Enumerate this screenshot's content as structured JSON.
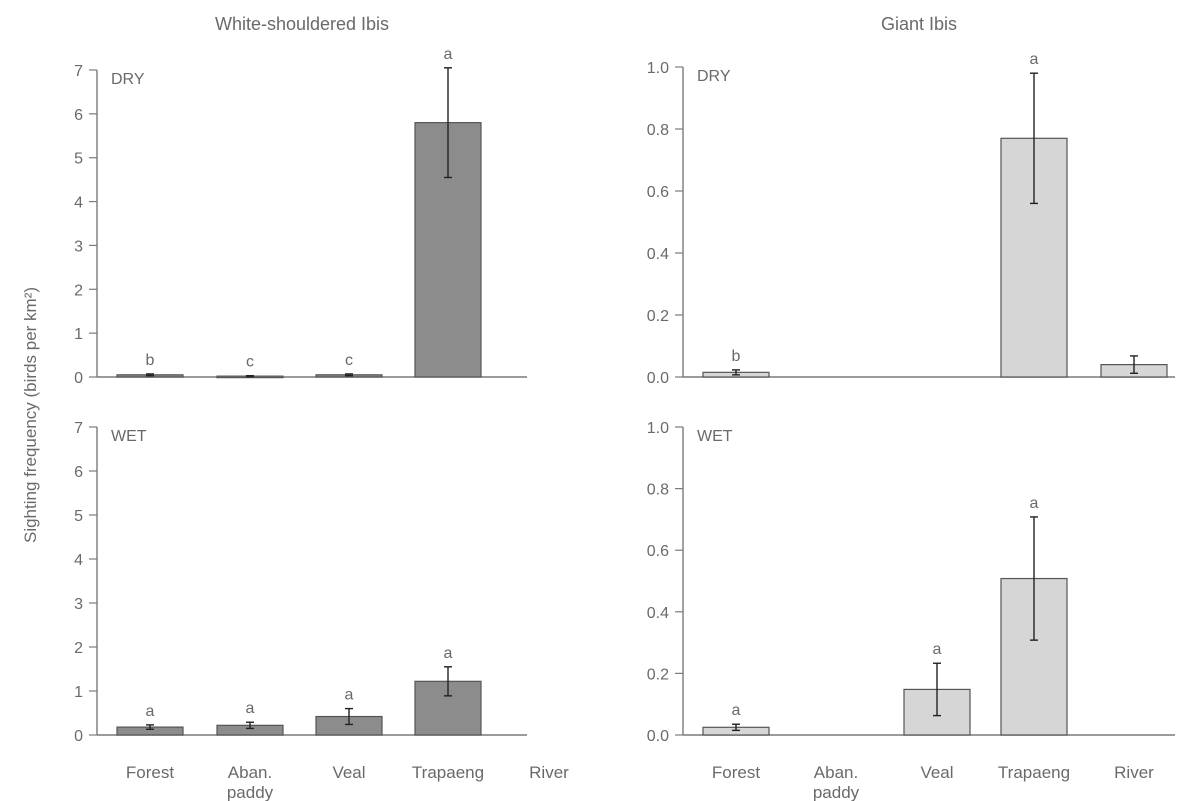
{
  "ylabel": "Sighting frequency (birds per km²)",
  "colors": {
    "white_shouldered_fill": "#8c8c8c",
    "giant_fill": "#d6d6d6",
    "bar_stroke": "#555555",
    "axis": "#7a7a7a",
    "text": "#6a6a6a",
    "error_bar": "#222222"
  },
  "categories": [
    "Forest",
    "Aban.\npaddy",
    "Veal",
    "Trapaeng",
    "River"
  ],
  "chart_data": [
    {
      "type": "bar",
      "title": "White-shouldered Ibis",
      "season": "DRY",
      "categories": [
        "Forest",
        "Aban.\npaddy",
        "Veal",
        "Trapaeng",
        "River"
      ],
      "values": [
        0.05,
        0.02,
        0.05,
        5.8,
        0
      ],
      "errors": [
        0.02,
        0.01,
        0.02,
        1.25,
        0
      ],
      "letters": [
        "b",
        "c",
        "c",
        "a",
        ""
      ],
      "ylim": [
        0,
        7
      ],
      "yticks": [
        "0",
        "1",
        "2",
        "3",
        "4",
        "5",
        "6",
        "7"
      ]
    },
    {
      "type": "bar",
      "title": "Giant Ibis",
      "season": "DRY",
      "categories": [
        "Forest",
        "Aban.\npaddy",
        "Veal",
        "Trapaeng",
        "River"
      ],
      "values": [
        0.015,
        0,
        0,
        0.77,
        0.04
      ],
      "errors": [
        0.008,
        0,
        0,
        0.21,
        0.028
      ],
      "letters": [
        "b",
        "",
        "",
        "a",
        ""
      ],
      "ylim": [
        0,
        1.0
      ],
      "yticks": [
        "0.0",
        "0.2",
        "0.4",
        "0.6",
        "0.8",
        "1.0"
      ]
    },
    {
      "type": "bar",
      "title": "",
      "season": "WET",
      "categories": [
        "Forest",
        "Aban.\npaddy",
        "Veal",
        "Trapaeng",
        "River"
      ],
      "values": [
        0.18,
        0.22,
        0.42,
        1.22,
        0
      ],
      "errors": [
        0.05,
        0.07,
        0.18,
        0.33,
        0
      ],
      "letters": [
        "a",
        "a",
        "a",
        "a",
        ""
      ],
      "ylim": [
        0,
        7
      ],
      "yticks": [
        "0",
        "1",
        "2",
        "3",
        "4",
        "5",
        "6",
        "7"
      ]
    },
    {
      "type": "bar",
      "title": "",
      "season": "WET",
      "categories": [
        "Forest",
        "Aban.\npaddy",
        "Veal",
        "Trapaeng",
        "River"
      ],
      "values": [
        0.025,
        0,
        0.148,
        0.508,
        0
      ],
      "errors": [
        0.01,
        0,
        0.085,
        0.2,
        0
      ],
      "letters": [
        "a",
        "",
        "a",
        "a",
        ""
      ],
      "ylim": [
        0,
        1.0
      ],
      "yticks": [
        "0.0",
        "0.2",
        "0.4",
        "0.6",
        "0.8",
        "1.0"
      ]
    }
  ]
}
